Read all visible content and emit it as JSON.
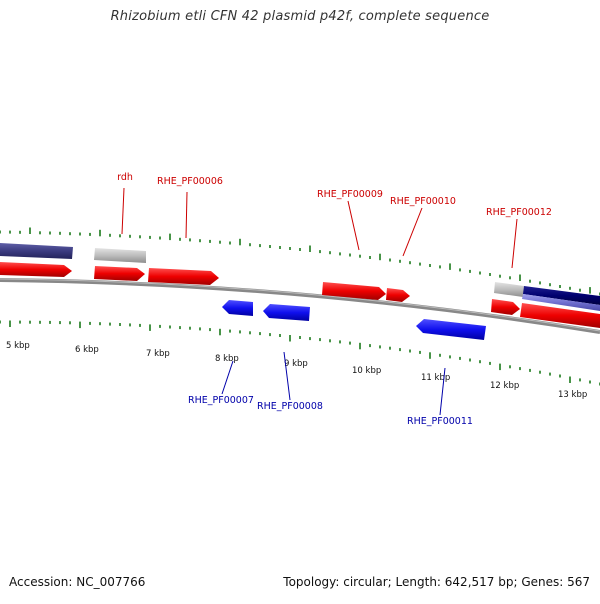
{
  "title": "Rhizobium etli CFN 42 plasmid p42f, complete sequence",
  "footer": {
    "accession": "Accession: NC_007766",
    "summary": "Topology: circular; Length: 642,517 bp; Genes: 567"
  },
  "colors": {
    "forward_gene": "#e00000",
    "reverse_gene": "#1010e0",
    "other_feature": "#bbbbbb",
    "band_dark": "#3b3b80",
    "band_navy": "#000070",
    "band_light": "#7070d0",
    "backbone": "#888888",
    "tick": "#1a7a1a",
    "forward_label": "#cc0000",
    "reverse_label": "#0000aa",
    "scale_label": "#111111"
  },
  "scale": {
    "labels": [
      "5 kbp",
      "6 kbp",
      "7 kbp",
      "8 kbp",
      "9 kbp",
      "10 kbp",
      "11 kbp",
      "12 kbp",
      "13 kbp"
    ],
    "start_kbp": 4.7,
    "end_kbp": 13.7
  },
  "forward_labels": [
    {
      "text": "rdh"
    },
    {
      "text": "RHE_PF00006"
    },
    {
      "text": "RHE_PF00009"
    },
    {
      "text": "RHE_PF00010"
    },
    {
      "text": "RHE_PF00012"
    }
  ],
  "reverse_labels": [
    {
      "text": "RHE_PF00007"
    },
    {
      "text": "RHE_PF00008"
    },
    {
      "text": "RHE_PF00011"
    }
  ]
}
